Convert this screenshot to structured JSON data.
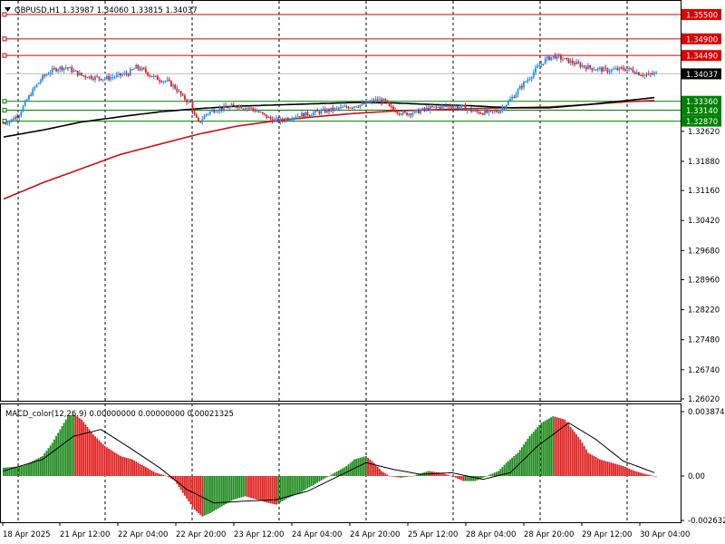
{
  "header": {
    "symbol_line": "GBPUSD,H1  1.33987 1.34060 1.33815 1.34037",
    "macd_line": "MACD_color(12,26,9) 0.00000000 0.00000000 0.00021325"
  },
  "colors": {
    "bull": "#1e90ff",
    "bear": "#e02020",
    "ma_fast": "#000000",
    "ma_slow": "#cc1111",
    "resistance": "#dd0000",
    "support": "#008000",
    "hist_up": "#1f8a1f",
    "hist_down": "#e02020",
    "signal": "#000000",
    "grid": "#000000",
    "price_tag": "#000000"
  },
  "chart_data": [
    {
      "type": "candlestick",
      "symbol": "GBPUSD",
      "timeframe": "H1",
      "ohlc_last": {
        "open": 1.33987,
        "high": 1.3406,
        "low": 1.33815,
        "close": 1.34037
      },
      "current_price": "1.34037",
      "ylim": [
        1.2602,
        1.355
      ],
      "y_ticks": [
        "1.32620",
        "1.31880",
        "1.31160",
        "1.30420",
        "1.29680",
        "1.28960",
        "1.28220",
        "1.27480",
        "1.26740",
        "1.26020"
      ],
      "x_ticks": [
        "18 Apr 2025",
        "21 Apr 12:00",
        "22 Apr 04:00",
        "22 Apr 20:00",
        "23 Apr 12:00",
        "24 Apr 04:00",
        "24 Apr 20:00",
        "25 Apr 12:00",
        "28 Apr 04:00",
        "28 Apr 20:00",
        "29 Apr 12:00",
        "30 Apr 04:00"
      ],
      "levels": [
        {
          "label": "1.35500",
          "value": 1.355,
          "kind": "resistance"
        },
        {
          "label": "1.34900",
          "value": 1.349,
          "kind": "resistance"
        },
        {
          "label": "1.34490",
          "value": 1.3449,
          "kind": "resistance"
        },
        {
          "label": "1.33360",
          "value": 1.3336,
          "kind": "support"
        },
        {
          "label": "1.33140",
          "value": 1.3314,
          "kind": "support"
        },
        {
          "label": "1.32870",
          "value": 1.3287,
          "kind": "support"
        }
      ],
      "close_path": [
        [
          0,
          1.3282
        ],
        [
          4,
          1.329
        ],
        [
          8,
          1.3305
        ],
        [
          12,
          1.334
        ],
        [
          16,
          1.337
        ],
        [
          20,
          1.3395
        ],
        [
          24,
          1.341
        ],
        [
          28,
          1.3418
        ],
        [
          32,
          1.342
        ],
        [
          36,
          1.341
        ],
        [
          40,
          1.34
        ],
        [
          46,
          1.3395
        ],
        [
          52,
          1.3392
        ],
        [
          58,
          1.3398
        ],
        [
          64,
          1.3405
        ],
        [
          68,
          1.342
        ],
        [
          72,
          1.3412
        ],
        [
          76,
          1.3398
        ],
        [
          80,
          1.339
        ],
        [
          84,
          1.3385
        ],
        [
          88,
          1.337
        ],
        [
          92,
          1.3345
        ],
        [
          96,
          1.3332
        ],
        [
          98,
          1.33
        ],
        [
          100,
          1.3282
        ],
        [
          104,
          1.3305
        ],
        [
          108,
          1.3315
        ],
        [
          114,
          1.332
        ],
        [
          120,
          1.3325
        ],
        [
          126,
          1.332
        ],
        [
          130,
          1.3312
        ],
        [
          134,
          1.33
        ],
        [
          138,
          1.329
        ],
        [
          142,
          1.3288
        ],
        [
          146,
          1.3295
        ],
        [
          150,
          1.33
        ],
        [
          156,
          1.3305
        ],
        [
          162,
          1.331
        ],
        [
          168,
          1.3315
        ],
        [
          174,
          1.332
        ],
        [
          180,
          1.3325
        ],
        [
          186,
          1.333
        ],
        [
          192,
          1.334
        ],
        [
          196,
          1.3335
        ],
        [
          198,
          1.332
        ],
        [
          202,
          1.3312
        ],
        [
          206,
          1.3305
        ],
        [
          212,
          1.331
        ],
        [
          218,
          1.3318
        ],
        [
          224,
          1.3322
        ],
        [
          230,
          1.3325
        ],
        [
          236,
          1.332
        ],
        [
          242,
          1.331
        ],
        [
          248,
          1.3308
        ],
        [
          254,
          1.3312
        ],
        [
          258,
          1.333
        ],
        [
          262,
          1.335
        ],
        [
          266,
          1.3375
        ],
        [
          270,
          1.3395
        ],
        [
          274,
          1.342
        ],
        [
          278,
          1.3438
        ],
        [
          282,
          1.3448
        ],
        [
          286,
          1.3442
        ],
        [
          290,
          1.3435
        ],
        [
          294,
          1.3428
        ],
        [
          298,
          1.3422
        ],
        [
          302,
          1.3418
        ],
        [
          306,
          1.3415
        ],
        [
          310,
          1.3412
        ],
        [
          314,
          1.3414
        ],
        [
          318,
          1.3416
        ],
        [
          322,
          1.3414
        ],
        [
          326,
          1.3405
        ],
        [
          330,
          1.34
        ],
        [
          334,
          1.3404
        ]
      ],
      "ma_slow": [
        [
          0,
          1.3095
        ],
        [
          20,
          1.3135
        ],
        [
          40,
          1.317
        ],
        [
          60,
          1.3205
        ],
        [
          80,
          1.323
        ],
        [
          100,
          1.3255
        ],
        [
          120,
          1.3275
        ],
        [
          140,
          1.3288
        ],
        [
          160,
          1.3298
        ],
        [
          180,
          1.3306
        ],
        [
          200,
          1.3312
        ],
        [
          220,
          1.3315
        ],
        [
          240,
          1.3318
        ],
        [
          260,
          1.332
        ],
        [
          280,
          1.3322
        ],
        [
          300,
          1.3328
        ],
        [
          320,
          1.3335
        ],
        [
          334,
          1.3338
        ]
      ],
      "ma_fast": [
        [
          0,
          1.3248
        ],
        [
          20,
          1.3265
        ],
        [
          40,
          1.3285
        ],
        [
          60,
          1.3298
        ],
        [
          80,
          1.331
        ],
        [
          100,
          1.3318
        ],
        [
          120,
          1.3324
        ],
        [
          140,
          1.3327
        ],
        [
          160,
          1.333
        ],
        [
          180,
          1.3333
        ],
        [
          200,
          1.3332
        ],
        [
          220,
          1.3328
        ],
        [
          240,
          1.3325
        ],
        [
          260,
          1.332
        ],
        [
          280,
          1.332
        ],
        [
          300,
          1.3328
        ],
        [
          320,
          1.3338
        ],
        [
          334,
          1.3345
        ]
      ]
    },
    {
      "type": "histogram",
      "indicator": "MACD",
      "ylim": [
        -0.002632,
        0.003874
      ],
      "y_ticks": [
        "0.0038742",
        "0.00",
        "-0.002632"
      ],
      "histogram_path": [
        [
          0,
          0.0005
        ],
        [
          10,
          0.0006
        ],
        [
          20,
          0.0012
        ],
        [
          25,
          0.002
        ],
        [
          30,
          0.003
        ],
        [
          33,
          0.0036
        ],
        [
          36,
          0.0037
        ],
        [
          40,
          0.0034
        ],
        [
          46,
          0.0025
        ],
        [
          52,
          0.0018
        ],
        [
          60,
          0.0012
        ],
        [
          66,
          0.001
        ],
        [
          72,
          0.0006
        ],
        [
          78,
          0.0002
        ],
        [
          84,
          0.0
        ],
        [
          88,
          -0.0003
        ],
        [
          92,
          -0.001
        ],
        [
          98,
          -0.002
        ],
        [
          102,
          -0.0024
        ],
        [
          106,
          -0.0022
        ],
        [
          112,
          -0.0018
        ],
        [
          118,
          -0.0014
        ],
        [
          124,
          -0.0012
        ],
        [
          130,
          -0.0014
        ],
        [
          136,
          -0.0016
        ],
        [
          140,
          -0.0017
        ],
        [
          146,
          -0.0013
        ],
        [
          152,
          -0.001
        ],
        [
          158,
          -0.0006
        ],
        [
          164,
          -0.0002
        ],
        [
          170,
          0.0002
        ],
        [
          176,
          0.0006
        ],
        [
          180,
          0.001
        ],
        [
          186,
          0.0012
        ],
        [
          190,
          0.0008
        ],
        [
          194,
          0.0003
        ],
        [
          198,
          0.0
        ],
        [
          204,
          -0.0001
        ],
        [
          210,
          0.0
        ],
        [
          218,
          0.0003
        ],
        [
          224,
          0.0002
        ],
        [
          230,
          0.0
        ],
        [
          236,
          -0.0003
        ],
        [
          242,
          -0.0003
        ],
        [
          248,
          0.0
        ],
        [
          254,
          0.0003
        ],
        [
          258,
          0.0008
        ],
        [
          264,
          0.0014
        ],
        [
          270,
          0.0024
        ],
        [
          276,
          0.0032
        ],
        [
          282,
          0.0036
        ],
        [
          288,
          0.0034
        ],
        [
          292,
          0.0028
        ],
        [
          296,
          0.0022
        ],
        [
          300,
          0.0014
        ],
        [
          306,
          0.001
        ],
        [
          312,
          0.0008
        ],
        [
          318,
          0.0006
        ],
        [
          324,
          0.0003
        ],
        [
          330,
          0.0001
        ],
        [
          334,
          0.0
        ]
      ],
      "signal_path": [
        [
          0,
          0.0003
        ],
        [
          20,
          0.001
        ],
        [
          36,
          0.0024
        ],
        [
          50,
          0.0028
        ],
        [
          66,
          0.0016
        ],
        [
          80,
          0.0005
        ],
        [
          94,
          -0.0008
        ],
        [
          108,
          -0.0016
        ],
        [
          122,
          -0.0015
        ],
        [
          140,
          -0.0014
        ],
        [
          156,
          -0.0009
        ],
        [
          172,
          0.0
        ],
        [
          186,
          0.0008
        ],
        [
          200,
          0.0004
        ],
        [
          214,
          0.0001
        ],
        [
          230,
          0.0002
        ],
        [
          246,
          -0.0002
        ],
        [
          260,
          0.0002
        ],
        [
          274,
          0.0018
        ],
        [
          290,
          0.0032
        ],
        [
          304,
          0.0022
        ],
        [
          318,
          0.0009
        ],
        [
          334,
          0.0002
        ]
      ]
    }
  ]
}
